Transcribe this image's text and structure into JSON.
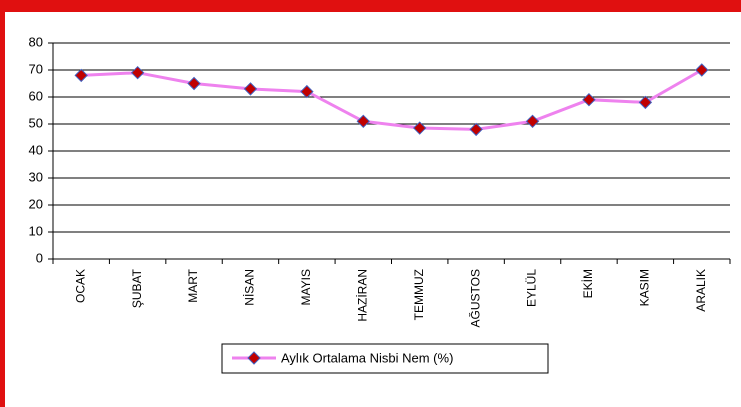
{
  "chart_data": {
    "type": "line",
    "categories": [
      "OCAK",
      "ŞUBAT",
      "MART",
      "NİSAN",
      "MAYIS",
      "HAZİRAN",
      "TEMMUZ",
      "AĞUSTOS",
      "EYLÜL",
      "EKİM",
      "KASIM",
      "ARALIK"
    ],
    "series": [
      {
        "name": "Aylık Ortalama Nisbi Nem (%)",
        "color": "#ee82ee",
        "marker_color": "#c00000",
        "values": [
          68,
          69,
          65,
          63,
          62,
          51,
          48.5,
          48,
          51,
          59,
          58,
          70
        ]
      }
    ],
    "ylim": [
      0,
      80
    ],
    "yticks": [
      0,
      10,
      20,
      30,
      40,
      50,
      60,
      70,
      80
    ],
    "grid": true,
    "legend": "bottom"
  }
}
